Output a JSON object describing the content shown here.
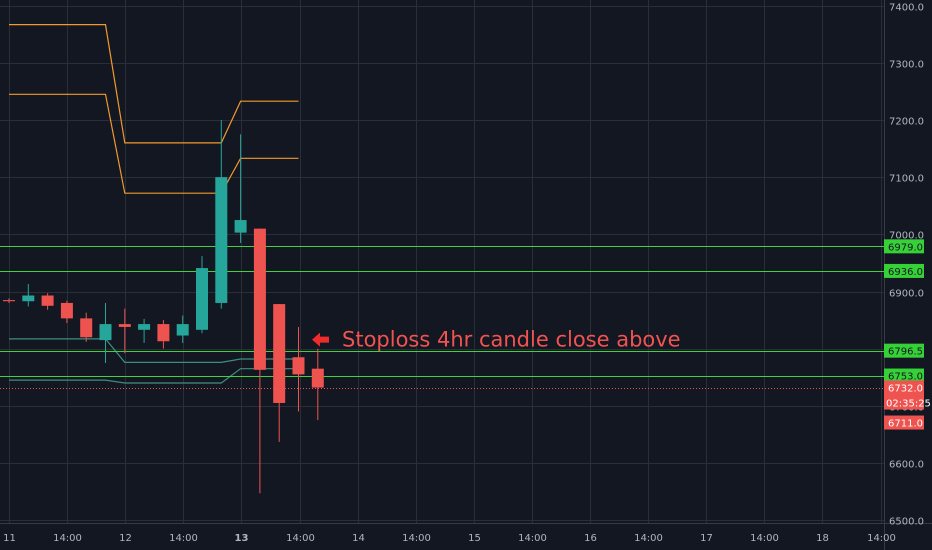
{
  "chart_data": {
    "type": "candlestick",
    "x_ticks": [
      {
        "label": "11",
        "bold": false
      },
      {
        "label": "14:00",
        "bold": false
      },
      {
        "label": "12",
        "bold": false
      },
      {
        "label": "14:00",
        "bold": false
      },
      {
        "label": "13",
        "bold": true
      },
      {
        "label": "14:00",
        "bold": false
      },
      {
        "label": "14",
        "bold": false
      },
      {
        "label": "14:00",
        "bold": false
      },
      {
        "label": "15",
        "bold": false
      },
      {
        "label": "14:00",
        "bold": false
      },
      {
        "label": "16",
        "bold": false
      },
      {
        "label": "14:00",
        "bold": false
      },
      {
        "label": "17",
        "bold": false
      },
      {
        "label": "14:00",
        "bold": false
      },
      {
        "label": "18",
        "bold": false
      },
      {
        "label": "14:00",
        "bold": false
      }
    ],
    "y_ticks": [
      6500,
      6600,
      6700,
      6800,
      6900,
      7000,
      7100,
      7200,
      7300,
      7400
    ],
    "y_tick_labels": [
      "6500.0",
      "6600.0",
      "6700.0",
      "6800.0",
      "6900.0",
      "7000.0",
      "7100.0",
      "7200.0",
      "7300.0",
      "7400.0"
    ],
    "ylim": [
      6495,
      7410
    ],
    "candles": [
      {
        "o": 6885,
        "h": 6888,
        "l": 6880,
        "c": 6883
      },
      {
        "o": 6883,
        "h": 6913,
        "l": 6874,
        "c": 6893
      },
      {
        "o": 6893,
        "h": 6897,
        "l": 6868,
        "c": 6875
      },
      {
        "o": 6880,
        "h": 6884,
        "l": 6845,
        "c": 6853
      },
      {
        "o": 6853,
        "h": 6863,
        "l": 6812,
        "c": 6820
      },
      {
        "o": 6815,
        "h": 6880,
        "l": 6775,
        "c": 6843
      },
      {
        "o": 6843,
        "h": 6870,
        "l": 6792,
        "c": 6838
      },
      {
        "o": 6833,
        "h": 6852,
        "l": 6810,
        "c": 6843
      },
      {
        "o": 6843,
        "h": 6850,
        "l": 6800,
        "c": 6813
      },
      {
        "o": 6823,
        "h": 6858,
        "l": 6810,
        "c": 6843
      },
      {
        "o": 6833,
        "h": 6962,
        "l": 6827,
        "c": 6941
      },
      {
        "o": 6880,
        "h": 7200,
        "l": 6870,
        "c": 7100
      },
      {
        "o": 7003,
        "h": 7175,
        "l": 6985,
        "c": 7025
      },
      {
        "o": 7010,
        "h": 7010,
        "l": 6547,
        "c": 6763
      },
      {
        "o": 6878,
        "h": 6878,
        "l": 6637,
        "c": 6705
      },
      {
        "o": 6785,
        "h": 6838,
        "l": 6690,
        "c": 6755
      },
      {
        "o": 6765,
        "h": 6800,
        "l": 6675,
        "c": 6732
      }
    ],
    "channel_lines": [
      {
        "color": "#f29a2c",
        "points": [
          [
            0,
            7367
          ],
          [
            5,
            7367
          ],
          [
            6,
            7160
          ],
          [
            11,
            7160
          ],
          [
            12,
            7233
          ],
          [
            15,
            7233
          ]
        ]
      },
      {
        "color": "#f29a2c",
        "points": [
          [
            0,
            7245
          ],
          [
            5,
            7245
          ],
          [
            6,
            7072
          ],
          [
            11,
            7072
          ],
          [
            12,
            7133
          ],
          [
            15,
            7133
          ]
        ]
      },
      {
        "color": "#3e8e7e",
        "points": [
          [
            0,
            6817
          ],
          [
            5,
            6817
          ],
          [
            6,
            6776
          ],
          [
            11,
            6776
          ],
          [
            12,
            6782
          ],
          [
            15,
            6782
          ]
        ]
      },
      {
        "color": "#3e8e7e",
        "points": [
          [
            0,
            6745
          ],
          [
            5,
            6745
          ],
          [
            6,
            6740
          ],
          [
            11,
            6740
          ],
          [
            12,
            6765
          ],
          [
            15,
            6765
          ]
        ]
      }
    ],
    "horizontal_levels": [
      {
        "value": 6979.0,
        "label": "6979.0",
        "color": "#41d141",
        "bg": "#36d136"
      },
      {
        "value": 6936.0,
        "label": "6936.0",
        "color": "#41d141",
        "bg": "#36d136"
      },
      {
        "value": 6796.5,
        "label": "6796.5",
        "color": "#41d141",
        "bg": "#36d136"
      },
      {
        "value": 6753.0,
        "label": "6753.0",
        "color": "#41d141",
        "bg": "#36d136"
      }
    ],
    "price_line": {
      "value": 6732.0,
      "label": "6732.0",
      "color": "#ef5350"
    },
    "countdown": "02:35:25",
    "low_label": {
      "value": 6711.0,
      "label": "6711.0"
    },
    "annotation": {
      "text": "Stoploss 4hr candle close above",
      "value": 6796.5
    },
    "colors": {
      "up": "#26a69a",
      "down": "#ef5350",
      "background": "#131722",
      "grid": "#2a2e39",
      "axis_text": "#b2b5be"
    }
  }
}
